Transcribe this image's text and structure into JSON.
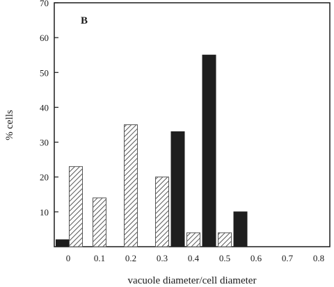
{
  "chart_data": {
    "type": "bar",
    "panel_label": "B",
    "xlabel": "vacuole diameter/cell diameter",
    "ylabel": "% cells",
    "ylim": [
      0,
      70
    ],
    "yticks": [
      10,
      20,
      30,
      40,
      50,
      60,
      70
    ],
    "xticks": [
      0,
      0.1,
      0.2,
      0.3,
      0.4,
      0.5,
      0.6,
      0.7,
      0.8
    ],
    "xtick_labels": [
      "0",
      "0.1",
      "0.2",
      "0.3",
      "0.4",
      "0.5",
      "0.6",
      "0.7",
      "0.8"
    ],
    "grid": false,
    "legend": "none",
    "series": [
      {
        "pattern": "solid",
        "color": "#1e1e1e",
        "x": [
          0,
          0.35,
          0.45,
          0.55
        ],
        "values": [
          2,
          33,
          55,
          10
        ]
      },
      {
        "pattern": "hatched",
        "color": "#555555",
        "x": [
          0,
          0.1,
          0.2,
          0.3,
          0.4,
          0.5
        ],
        "values": [
          23,
          14,
          35,
          20,
          4,
          4
        ]
      }
    ]
  }
}
